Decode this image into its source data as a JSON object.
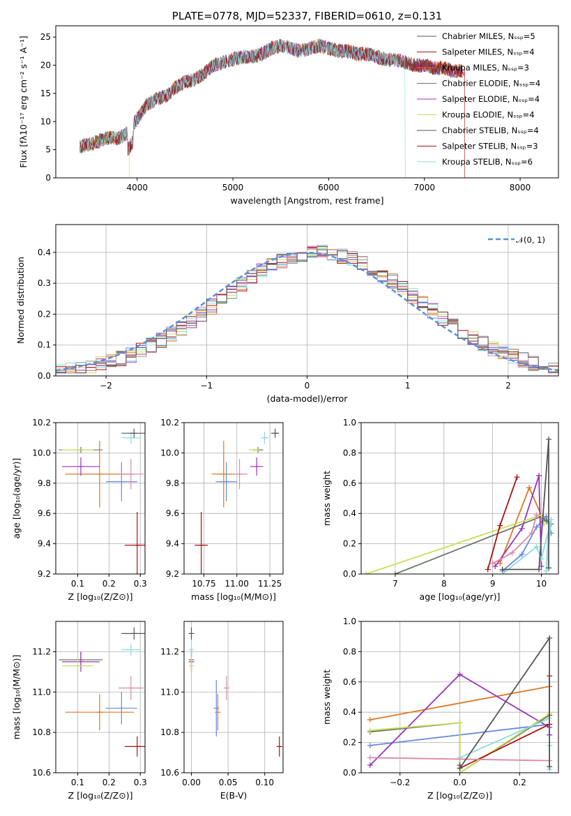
{
  "colors": {
    "blue": "#6688dd",
    "orange": "#dd7722",
    "green": "#667766",
    "purple": "#9933bb",
    "yellow": "#ccdd55",
    "red": "#aa1111",
    "cyan": "#88dddd",
    "pink": "#dd88aa",
    "gray": "#555555",
    "gauss": "#5b8fd9"
  },
  "chart_data": [
    {
      "type": "line",
      "title": "PLATE=0778, MJD=52337, FIBERID=0610, z=0.131",
      "xlabel": "wavelength [Angstrom, rest frame]",
      "ylabel": "Flux [fλ10⁻¹⁷ erg cm⁻² s⁻¹ A⁻¹]",
      "xlim": [
        3150,
        8400
      ],
      "ylim": [
        0,
        27
      ],
      "grid": false,
      "x_ticks": [
        4000,
        5000,
        6000,
        7000,
        8000
      ],
      "y_ticks": [
        0,
        5,
        10,
        15,
        20,
        25
      ],
      "legend_position": "right",
      "legend": [
        "Chabrier MILES, Nₛₛₚ=5",
        "Salpeter MILES, Nₛₛₚ=4",
        "Kroupa MILES, Nₛₛₚ=3",
        "Chabrier ELODIE, Nₛₛₚ=4",
        "Salpeter ELODIE, Nₛₛₚ=4",
        "Kroupa ELODIE, Nₛₛₚ=4",
        "Chabrier STELIB, Nₛₛₚ=4",
        "Salpeter STELIB, Nₛₛₚ=3",
        "Kroupa STELIB, Nₛₛₚ=6"
      ],
      "spectrum_x": [
        3400,
        3500,
        3600,
        3700,
        3800,
        3900,
        4000,
        4100,
        4200,
        4300,
        4400,
        4500,
        4600,
        4700,
        4800,
        4900,
        5000,
        5100,
        5200,
        5300,
        5400,
        5500,
        5600,
        5700,
        5800,
        5900,
        6000,
        6100,
        6200,
        6300,
        6400,
        6500,
        6600,
        6700,
        6800,
        6900,
        7000,
        7100,
        7200,
        7300,
        7400
      ],
      "spectrum_y": [
        5.5,
        6.0,
        6.5,
        7.2,
        7.0,
        8.0,
        10.5,
        13.0,
        14.0,
        14.5,
        16.0,
        17.0,
        17.5,
        18.5,
        20.0,
        20.5,
        21.0,
        21.5,
        21.5,
        22.0,
        23.0,
        23.5,
        23.0,
        22.5,
        23.0,
        23.5,
        23.0,
        22.5,
        22.5,
        22.0,
        22.0,
        21.5,
        21.0,
        21.0,
        20.5,
        20.0,
        20.0,
        19.5,
        19.5,
        19.0,
        19.0
      ]
    },
    {
      "type": "bar",
      "xlabel": "(data-model)/error",
      "ylabel": "Normed distribution",
      "xlim": [
        -2.5,
        2.5
      ],
      "ylim": [
        0,
        0.49
      ],
      "grid": true,
      "x_ticks": [
        -2,
        -1,
        0,
        1,
        2
      ],
      "y_ticks": [
        0.0,
        0.1,
        0.2,
        0.3,
        0.4
      ],
      "legend": [
        "𝒩(0, 1)"
      ],
      "legend_position": "top-right",
      "bin_width": 0.1
    },
    {
      "type": "scatter",
      "xlabel": "Z [log₁₀(Z/Z⊙)]",
      "ylabel": "age  [log₁₀(age/yr)]",
      "xlim": [
        0.03,
        0.315
      ],
      "ylim": [
        9.2,
        10.2
      ],
      "grid": true,
      "x_ticks": [
        0.1,
        0.2,
        0.3
      ],
      "y_ticks": [
        9.2,
        9.4,
        9.6,
        9.8,
        10.0,
        10.2
      ],
      "points": [
        {
          "c": "blue",
          "x": 0.24,
          "xerr": 0.05,
          "y": 9.81,
          "yerr": 0.13
        },
        {
          "c": "orange",
          "x": 0.17,
          "xerr": 0.11,
          "y": 9.86,
          "yerr": 0.22
        },
        {
          "c": "green",
          "x": 0.11,
          "xerr": 0.07,
          "y": 10.02,
          "yerr": 0.02
        },
        {
          "c": "purple",
          "x": 0.11,
          "xerr": 0.06,
          "y": 9.91,
          "yerr": 0.06
        },
        {
          "c": "yellow",
          "x": 0.1,
          "xerr": 0.05,
          "y": 10.02,
          "yerr": 0.01
        },
        {
          "c": "red",
          "x": 0.29,
          "xerr": 0.04,
          "y": 9.39,
          "yerr": 0.22
        },
        {
          "c": "cyan",
          "x": 0.27,
          "xerr": 0.03,
          "y": 10.1,
          "yerr": 0.04
        },
        {
          "c": "pink",
          "x": 0.27,
          "xerr": 0.04,
          "y": 9.86,
          "yerr": 0.1
        },
        {
          "c": "gray",
          "x": 0.28,
          "xerr": 0.04,
          "y": 10.13,
          "yerr": 0.03
        }
      ]
    },
    {
      "type": "scatter",
      "xlabel": "mass [log₁₀(M/M⊙)]",
      "ylabel": "",
      "xlim": [
        10.6,
        11.35
      ],
      "ylim": [
        9.2,
        10.2
      ],
      "grid": true,
      "x_ticks": [
        10.75,
        11.0,
        11.25
      ],
      "y_ticks": [
        9.2,
        9.4,
        9.6,
        9.8,
        10.0,
        10.2
      ],
      "x_tick_labels": [
        "10.75",
        "11.00",
        "11.25"
      ],
      "points": [
        {
          "c": "blue",
          "x": 10.92,
          "xerr": 0.08,
          "y": 9.81,
          "yerr": 0.13
        },
        {
          "c": "orange",
          "x": 10.9,
          "xerr": 0.09,
          "y": 9.86,
          "yerr": 0.22
        },
        {
          "c": "green",
          "x": 11.16,
          "xerr": 0.04,
          "y": 10.02,
          "yerr": 0.02
        },
        {
          "c": "purple",
          "x": 11.15,
          "xerr": 0.05,
          "y": 9.91,
          "yerr": 0.06
        },
        {
          "c": "yellow",
          "x": 11.13,
          "xerr": 0.04,
          "y": 10.02,
          "yerr": 0.01
        },
        {
          "c": "red",
          "x": 10.73,
          "xerr": 0.05,
          "y": 9.39,
          "yerr": 0.22
        },
        {
          "c": "cyan",
          "x": 11.21,
          "xerr": 0.03,
          "y": 10.1,
          "yerr": 0.04
        },
        {
          "c": "pink",
          "x": 11.02,
          "xerr": 0.06,
          "y": 9.86,
          "yerr": 0.1
        },
        {
          "c": "gray",
          "x": 11.29,
          "xerr": 0.03,
          "y": 10.13,
          "yerr": 0.03
        }
      ]
    },
    {
      "type": "line",
      "xlabel": "age  [log₁₀(age/yr)]",
      "ylabel": "mass weight",
      "xlim": [
        6.3,
        10.35
      ],
      "ylim": [
        0,
        1.0
      ],
      "grid": true,
      "x_ticks": [
        7,
        8,
        9,
        10
      ],
      "y_ticks": [
        0.0,
        0.2,
        0.4,
        0.6,
        0.8,
        1.0
      ],
      "series": [
        {
          "c": "blue",
          "x": [
            9.2,
            9.6,
            9.9,
            10.1,
            10.2
          ],
          "y": [
            0.02,
            0.13,
            0.31,
            0.38,
            0.27
          ]
        },
        {
          "c": "orange",
          "x": [
            9.15,
            9.75,
            10.05
          ],
          "y": [
            0.07,
            0.57,
            0.35
          ]
        },
        {
          "c": "green",
          "x": [
            7.0,
            10.0,
            10.1,
            10.2
          ],
          "y": [
            0.0,
            0.38,
            0.35,
            0.33
          ]
        },
        {
          "c": "purple",
          "x": [
            9.05,
            9.6,
            9.95,
            10.0
          ],
          "y": [
            0.05,
            0.3,
            0.65,
            0.05
          ]
        },
        {
          "c": "yellow",
          "x": [
            6.4,
            10.0,
            10.05
          ],
          "y": [
            0.0,
            0.39,
            0.33
          ]
        },
        {
          "c": "red",
          "x": [
            8.9,
            9.15,
            9.5
          ],
          "y": [
            0.03,
            0.32,
            0.64
          ]
        },
        {
          "c": "cyan",
          "x": [
            9.2,
            9.9,
            10.0,
            10.2,
            10.1,
            10.15
          ],
          "y": [
            0.0,
            0.18,
            0.1,
            0.36,
            0.02,
            0.33
          ]
        },
        {
          "c": "pink",
          "x": [
            9.0,
            9.4,
            9.8,
            9.9
          ],
          "y": [
            0.07,
            0.14,
            0.27,
            0.39
          ]
        },
        {
          "c": "gray",
          "x": [
            9.2,
            9.95,
            10.15,
            10.15
          ],
          "y": [
            0.03,
            0.03,
            0.89,
            0.04
          ]
        }
      ]
    },
    {
      "type": "scatter",
      "xlabel": "Z [log₁₀(Z/Z⊙)]",
      "ylabel": "mass [log₁₀(M/M⊙)]",
      "xlim": [
        0.03,
        0.315
      ],
      "ylim": [
        10.6,
        11.35
      ],
      "grid": true,
      "x_ticks": [
        0.1,
        0.2,
        0.3
      ],
      "y_ticks": [
        10.6,
        10.8,
        11.0,
        11.2
      ],
      "points": [
        {
          "c": "blue",
          "x": 0.24,
          "xerr": 0.05,
          "y": 10.92,
          "yerr": 0.08
        },
        {
          "c": "orange",
          "x": 0.17,
          "xerr": 0.11,
          "y": 10.9,
          "yerr": 0.09
        },
        {
          "c": "green",
          "x": 0.11,
          "xerr": 0.07,
          "y": 11.16,
          "yerr": 0.04
        },
        {
          "c": "purple",
          "x": 0.11,
          "xerr": 0.06,
          "y": 11.15,
          "yerr": 0.05
        },
        {
          "c": "yellow",
          "x": 0.1,
          "xerr": 0.05,
          "y": 11.13,
          "yerr": 0.04
        },
        {
          "c": "red",
          "x": 0.29,
          "xerr": 0.04,
          "y": 10.73,
          "yerr": 0.05
        },
        {
          "c": "cyan",
          "x": 0.27,
          "xerr": 0.03,
          "y": 11.21,
          "yerr": 0.03
        },
        {
          "c": "pink",
          "x": 0.27,
          "xerr": 0.04,
          "y": 11.02,
          "yerr": 0.06
        },
        {
          "c": "gray",
          "x": 0.28,
          "xerr": 0.04,
          "y": 11.29,
          "yerr": 0.03
        }
      ]
    },
    {
      "type": "scatter",
      "xlabel": "E(B-V)",
      "ylabel": "",
      "xlim": [
        -0.01,
        0.125
      ],
      "ylim": [
        10.6,
        11.35
      ],
      "grid": true,
      "x_ticks": [
        0.0,
        0.05,
        0.1
      ],
      "y_ticks": [
        10.6,
        10.8,
        11.0,
        11.2
      ],
      "x_tick_labels": [
        "0.00",
        "0.05",
        "0.10"
      ],
      "points": [
        {
          "c": "blue",
          "x": 0.034,
          "xerr": 0,
          "y": 10.92,
          "yerr": 0.14
        },
        {
          "c": "orange",
          "x": 0.036,
          "xerr": 0,
          "y": 10.9,
          "yerr": 0.09
        },
        {
          "c": "green",
          "x": 0.0,
          "xerr": 0,
          "y": 11.16,
          "yerr": 0.06
        },
        {
          "c": "purple",
          "x": 0.0,
          "xerr": 0,
          "y": 11.15,
          "yerr": 0.05
        },
        {
          "c": "yellow",
          "x": 0.0,
          "xerr": 0,
          "y": 11.13,
          "yerr": 0.05
        },
        {
          "c": "red",
          "x": 0.12,
          "xerr": 0,
          "y": 10.73,
          "yerr": 0.05
        },
        {
          "c": "cyan",
          "x": 0.0,
          "xerr": 0,
          "y": 11.21,
          "yerr": 0.03
        },
        {
          "c": "pink",
          "x": 0.048,
          "xerr": 0,
          "y": 11.02,
          "yerr": 0.06
        },
        {
          "c": "gray",
          "x": 0.0,
          "xerr": 0,
          "y": 11.29,
          "yerr": 0.03
        }
      ]
    },
    {
      "type": "line",
      "xlabel": "Z [log₁₀(Z/Z⊙)]",
      "ylabel": "mass weight",
      "xlim": [
        -0.33,
        0.33
      ],
      "ylim": [
        0,
        1.0
      ],
      "grid": true,
      "x_ticks": [
        -0.2,
        0.0,
        0.2
      ],
      "y_ticks": [
        0.0,
        0.2,
        0.4,
        0.6,
        0.8,
        1.0
      ],
      "x_tick_labels": [
        "−0.2",
        "0.0",
        "0.2"
      ],
      "series": [
        {
          "c": "blue",
          "x": [
            -0.3,
            0.3,
            0.3
          ],
          "y": [
            0.18,
            0.32,
            0.25
          ]
        },
        {
          "c": "orange",
          "x": [
            -0.3,
            0.3,
            0.3
          ],
          "y": [
            0.35,
            0.57,
            0.38
          ]
        },
        {
          "c": "green",
          "x": [
            -0.3,
            0.0,
            0.0,
            0.3
          ],
          "y": [
            0.27,
            0.33,
            0.0,
            0.38
          ]
        },
        {
          "c": "purple",
          "x": [
            -0.3,
            0.0,
            0.3,
            0.3
          ],
          "y": [
            0.05,
            0.65,
            0.3,
            0.25
          ]
        },
        {
          "c": "yellow",
          "x": [
            -0.3,
            0.0,
            0.0,
            0.3
          ],
          "y": [
            0.28,
            0.33,
            0.0,
            0.39
          ]
        },
        {
          "c": "red",
          "x": [
            0.0,
            0.3,
            0.3
          ],
          "y": [
            0.03,
            0.32,
            0.64
          ]
        },
        {
          "c": "cyan",
          "x": [
            0.0,
            0.3,
            0.3,
            0.3
          ],
          "y": [
            0.1,
            0.36,
            0.02,
            0.18
          ]
        },
        {
          "c": "pink",
          "x": [
            -0.3,
            0.3
          ],
          "y": [
            0.1,
            0.08
          ]
        },
        {
          "c": "gray",
          "x": [
            0.0,
            0.0,
            0.3,
            0.3
          ],
          "y": [
            0.05,
            0.03,
            0.89,
            0.04
          ]
        }
      ]
    }
  ]
}
